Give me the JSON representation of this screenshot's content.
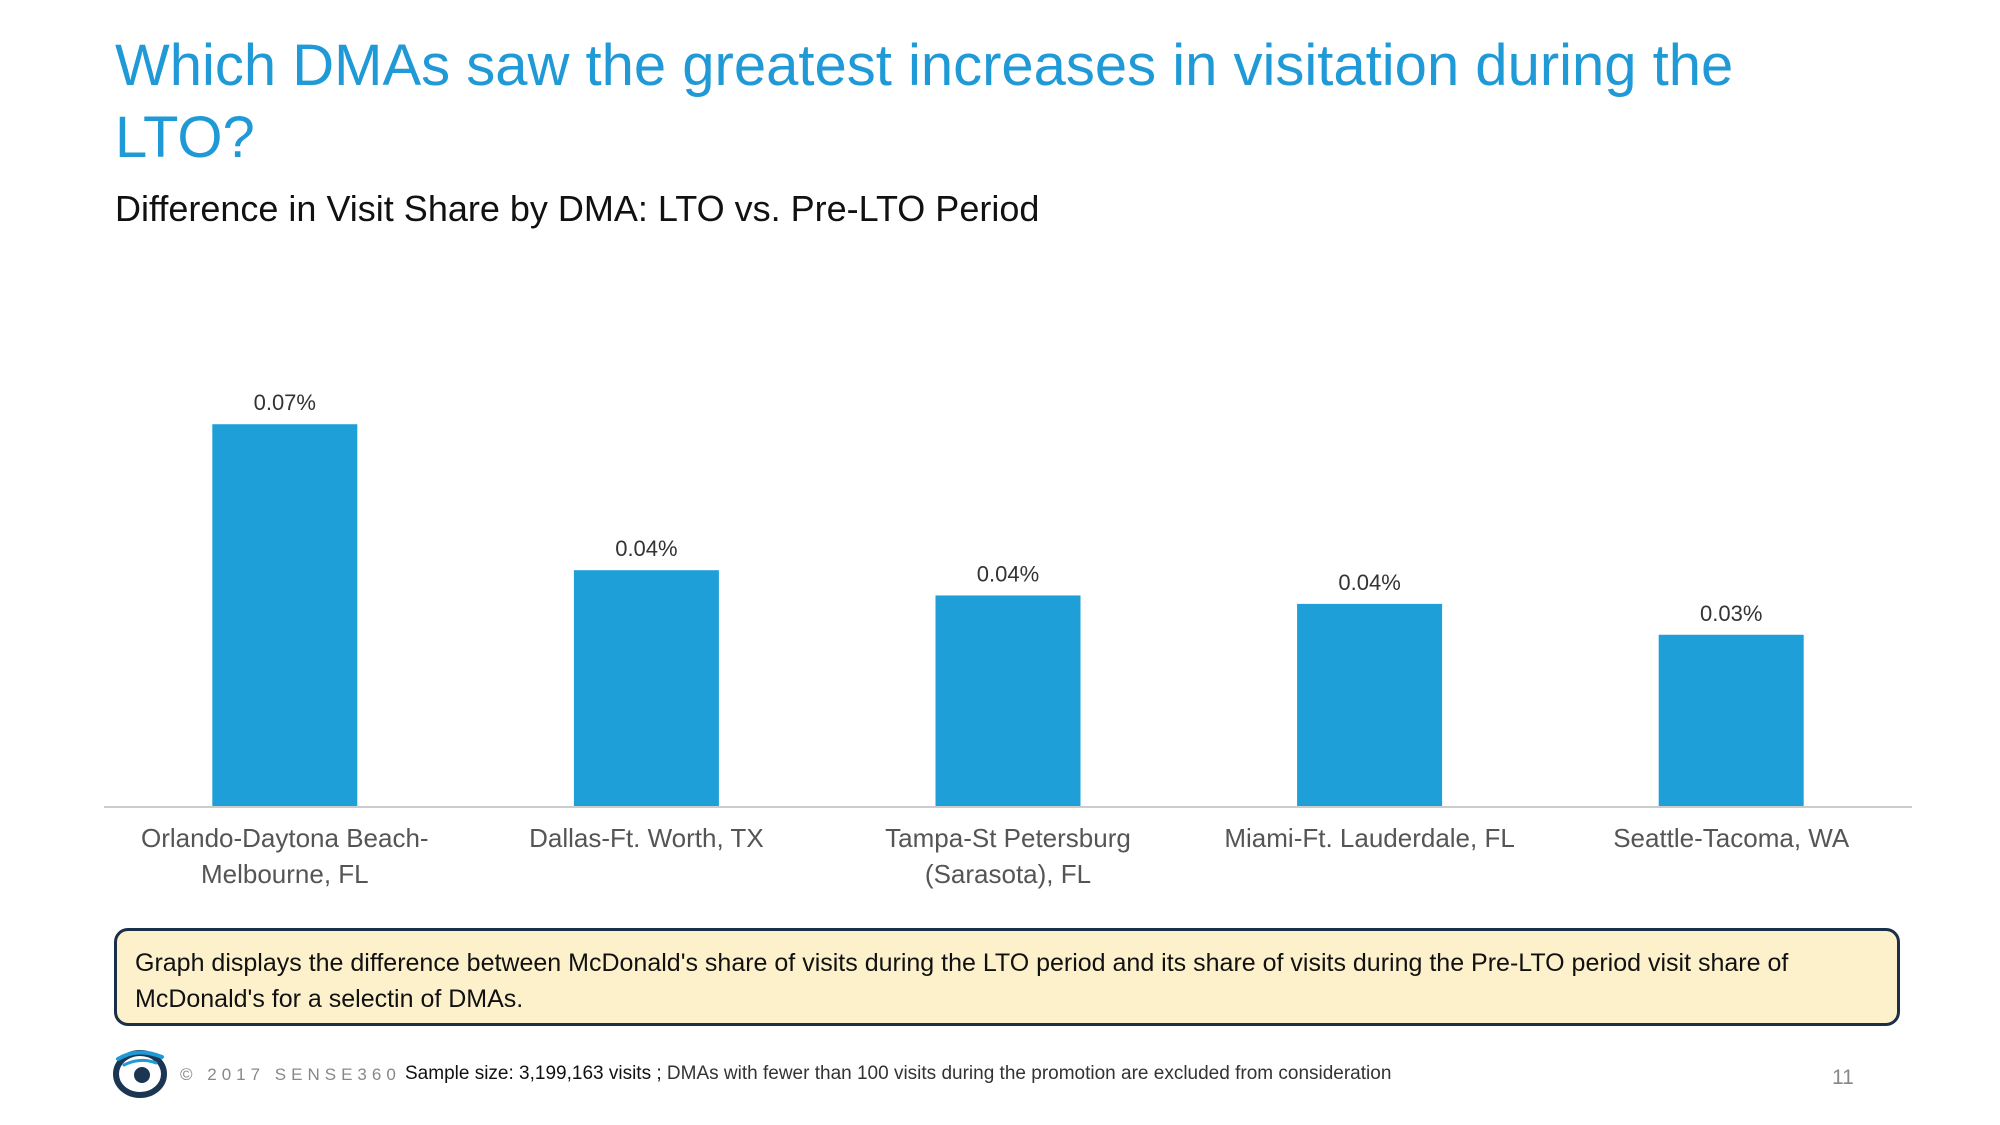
{
  "header": {
    "title": "Which DMAs saw the greatest increases in visitation during the LTO?",
    "subtitle": "Difference in Visit Share by DMA: LTO vs. Pre-LTO Period"
  },
  "chart_data": {
    "type": "bar",
    "title": "Difference in Visit Share by DMA: LTO vs. Pre-LTO Period",
    "categories": [
      [
        "Orlando-Daytona Beach-",
        "Melbourne, FL"
      ],
      [
        "Dallas-Ft. Worth, TX"
      ],
      [
        "Tampa-St Petersburg",
        "(Sarasota), FL"
      ],
      [
        "Miami-Ft. Lauderdale, FL"
      ],
      [
        "Seattle-Tacoma, WA"
      ]
    ],
    "values": [
      0.068,
      0.042,
      0.0375,
      0.036,
      0.0305
    ],
    "value_labels": [
      "0.07%",
      "0.04%",
      "0.04%",
      "0.04%",
      "0.03%"
    ],
    "unit": "%",
    "xlabel": "",
    "ylabel": "",
    "ylim": [
      0,
      0.07
    ],
    "grid": false,
    "legend": "none",
    "bar_color": "#1e9fd8",
    "axis_color": "#cccccc"
  },
  "note": {
    "text": "Graph displays the difference between McDonald's share of visits during the LTO period and its share of visits during the Pre-LTO period visit share of McDonald's for a selectin of DMAs."
  },
  "footer": {
    "copyright": "© 2017 SENSE360",
    "sample_lead": "Sample size: 3,199,163 visits ;",
    "sample_rest": " DMAs with fewer than 100 visits during the promotion are excluded from consideration",
    "page_number": "11"
  },
  "colors": {
    "title": "#1f9ad6",
    "bar": "#1e9fd8",
    "note_background": "#fdf1cc",
    "note_border": "#1b2e4a"
  },
  "icons": {
    "logo": "sense360-logo-icon"
  }
}
